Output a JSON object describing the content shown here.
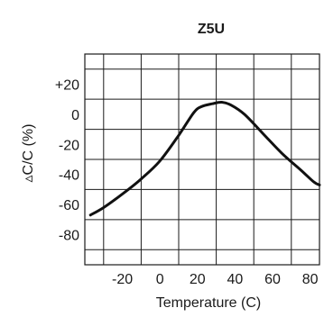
{
  "chart_data": {
    "type": "line",
    "title": "Z5U",
    "xlabel": "Temperature (C)",
    "ylabel": "▵C/C (%)",
    "xlim": [
      -40,
      85
    ],
    "ylim": [
      -100,
      40
    ],
    "x_ticks": [
      -20,
      0,
      20,
      40,
      60,
      80
    ],
    "x_tick_labels": [
      "-20",
      "0",
      "20",
      "40",
      "60",
      "80"
    ],
    "y_ticks": [
      20,
      0,
      -20,
      -40,
      -60,
      -80
    ],
    "y_tick_labels": [
      "+20",
      "0",
      "-20",
      "-40",
      "-60",
      "-80"
    ],
    "x_grid": [
      -30,
      -10,
      10,
      30,
      50,
      70
    ],
    "y_grid": [
      30,
      10,
      -10,
      -30,
      -50,
      -70,
      -90
    ],
    "grid": true,
    "series": [
      {
        "values": [
          [
            -37,
            -67
          ],
          [
            -30,
            -62
          ],
          [
            -20,
            -53
          ],
          [
            -10,
            -43
          ],
          [
            0,
            -31
          ],
          [
            10,
            -14
          ],
          [
            18,
            1
          ],
          [
            22,
            5
          ],
          [
            28,
            7
          ],
          [
            33,
            8
          ],
          [
            38,
            6
          ],
          [
            45,
            0
          ],
          [
            55,
            -13
          ],
          [
            65,
            -26
          ],
          [
            75,
            -37
          ],
          [
            82,
            -45
          ],
          [
            85,
            -47
          ]
        ]
      }
    ]
  }
}
